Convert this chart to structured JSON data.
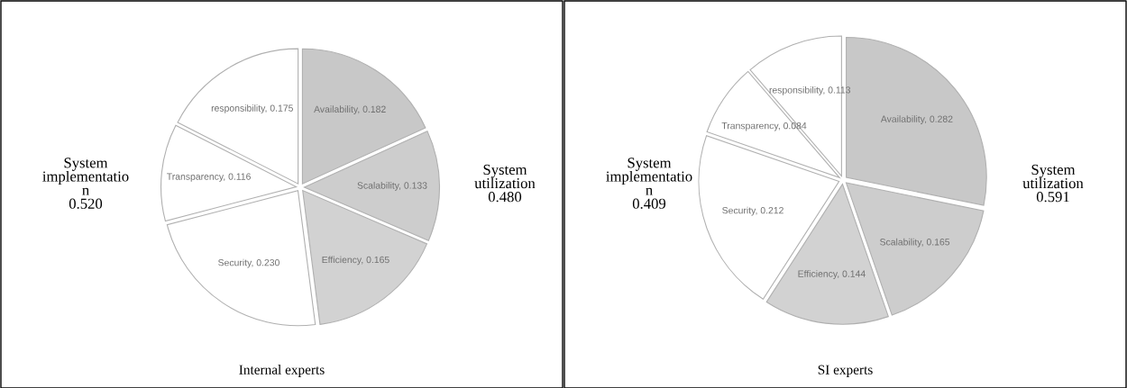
{
  "chart_data": [
    {
      "type": "pie",
      "title": "Internal experts",
      "categories": [
        "Availability",
        "Scalability",
        "Efficiency",
        "Security",
        "Transparency",
        "responsibility"
      ],
      "values": [
        0.182,
        0.133,
        0.165,
        0.23,
        0.116,
        0.175
      ],
      "value_labels": [
        "0.182",
        "0.133",
        "0.165",
        "0.230",
        "0.116",
        "0.175"
      ],
      "colors": [
        "#c8c8c8",
        "#cdcdcd",
        "#d2d2d2",
        "#ffffff",
        "#ffffff",
        "#ffffff"
      ],
      "annotations": [
        "System\nimplementatio\nn\n0.520",
        "System\nutilization\n0.480"
      ]
    },
    {
      "type": "pie",
      "title": "SI experts",
      "categories": [
        "Availability",
        "Scalability",
        "Efficiency",
        "Security",
        "Transparency",
        "responsibility"
      ],
      "values": [
        0.282,
        0.165,
        0.144,
        0.212,
        0.084,
        0.113
      ],
      "value_labels": [
        "0.282",
        "0.165",
        "0.144",
        "0.212",
        "0.084",
        "0.113"
      ],
      "colors": [
        "#c8c8c8",
        "#cdcdcd",
        "#d2d2d2",
        "#ffffff",
        "#ffffff",
        "#ffffff"
      ],
      "annotations": [
        "System\nimplementatio\nn\n0.409",
        "System\nutilization\n0.591"
      ]
    }
  ]
}
